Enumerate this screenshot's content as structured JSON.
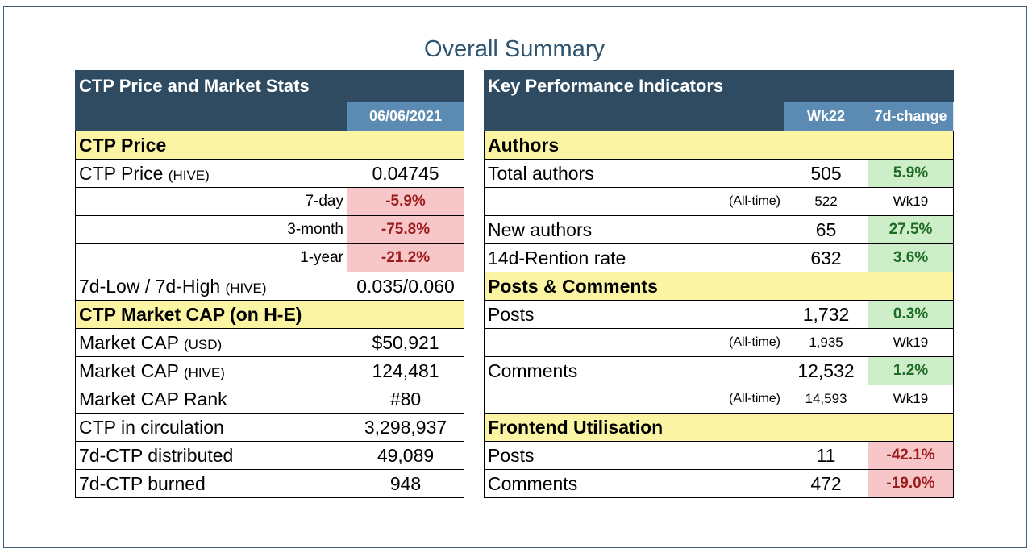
{
  "title": "Overall Summary",
  "left": {
    "header": "CTP Price and Market Stats",
    "date": "06/06/2021",
    "price_section": "CTP Price",
    "price_label": "CTP Price",
    "price_unit": "(HIVE)",
    "price_value": "0.04745",
    "changes": [
      {
        "label": "7-day",
        "value": "-5.9%"
      },
      {
        "label": "3-month",
        "value": "-75.8%"
      },
      {
        "label": "1-year",
        "value": "-21.2%"
      }
    ],
    "lowhigh_label": "7d-Low / 7d-High",
    "lowhigh_unit": "(HIVE)",
    "lowhigh_value": "0.035/0.060",
    "cap_section": "CTP Market CAP (on H-E)",
    "cap_usd_label": "Market CAP",
    "cap_usd_unit": "(USD)",
    "cap_usd_value": "$50,921",
    "cap_hive_label": "Market CAP",
    "cap_hive_unit": "(HIVE)",
    "cap_hive_value": "124,481",
    "rank_label": "Market CAP Rank",
    "rank_value": "#80",
    "circ_label": "CTP in circulation",
    "circ_value": "3,298,937",
    "dist_label": "7d-CTP distributed",
    "dist_value": "49,089",
    "burn_label": "7d-CTP burned",
    "burn_value": "948"
  },
  "right": {
    "header": "Key Performance Indicators",
    "col_week": "Wk22",
    "col_change": "7d-change",
    "authors_section": "Authors",
    "total_authors_label": "Total authors",
    "total_authors_value": "505",
    "total_authors_change": "5.9%",
    "alltime_label": "(All-time)",
    "authors_alltime_value": "522",
    "authors_alltime_week": "Wk19",
    "new_authors_label": "New authors",
    "new_authors_value": "65",
    "new_authors_change": "27.5%",
    "retention_label": "14d-Rention rate",
    "retention_value": "632",
    "retention_change": "3.6%",
    "posts_section": "Posts & Comments",
    "posts_label": "Posts",
    "posts_value": "1,732",
    "posts_change": "0.3%",
    "posts_alltime_value": "1,935",
    "posts_alltime_week": "Wk19",
    "comments_label": "Comments",
    "comments_value": "12,532",
    "comments_change": "1.2%",
    "comments_alltime_value": "14,593",
    "comments_alltime_week": "Wk19",
    "frontend_section": "Frontend Utilisation",
    "fe_posts_label": "Posts",
    "fe_posts_value": "11",
    "fe_posts_change": "-42.1%",
    "fe_comments_label": "Comments",
    "fe_comments_value": "472",
    "fe_comments_change": "-19.0%"
  },
  "colors": {
    "header_bg": "#2e4b62",
    "subheader_bg": "#5b8bb3",
    "section_bg": "#fbf5a3",
    "negative_bg": "#f7c6c8",
    "positive_bg": "#cdeec9"
  }
}
